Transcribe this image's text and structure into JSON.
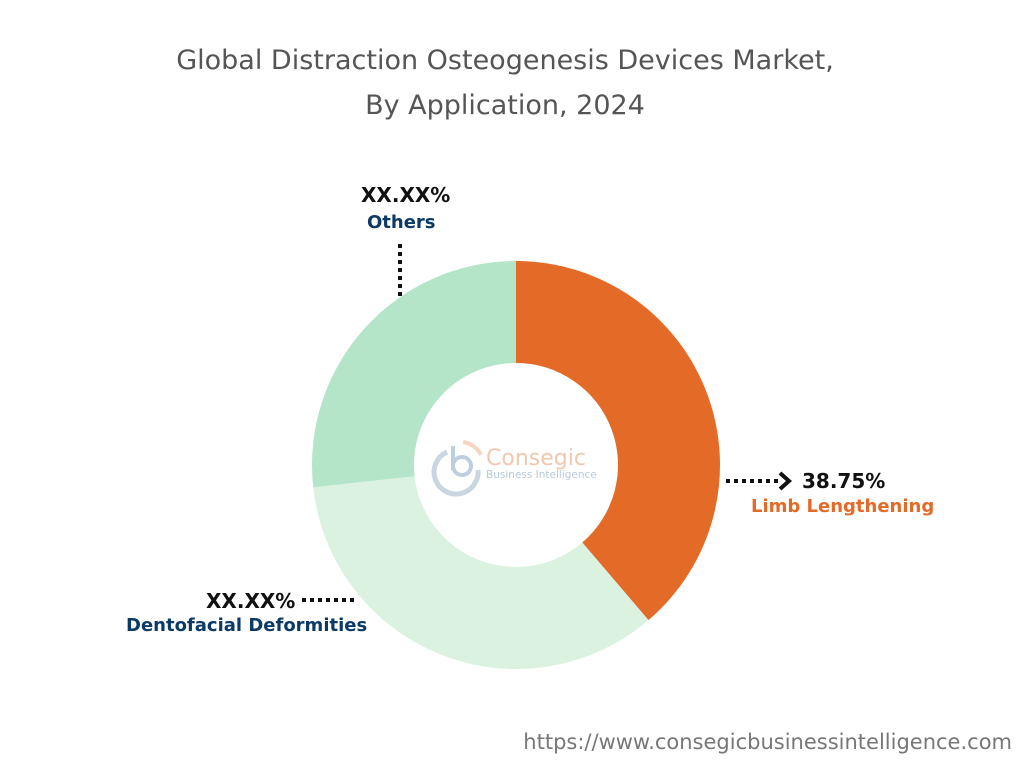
{
  "chart_data": {
    "type": "pie",
    "variant": "donut",
    "title": "Global Distraction Osteogenesis Devices Market,",
    "subtitle": "By Application, 2024",
    "categories": [
      "Limb Lengthening",
      "Dentofacial Deformities",
      "Others"
    ],
    "values": [
      38.75,
      34.5,
      26.75
    ],
    "value_labels": [
      "38.75%",
      "XX.XX%",
      "XX.XX%"
    ],
    "colors": [
      "#E46A27",
      "#DAF2DF",
      "#B5E5C8"
    ],
    "label_colors": [
      "#E46A27",
      "#0C3A66",
      "#0C3A66"
    ],
    "legend": "none"
  },
  "logo": {
    "name": "Consegic",
    "tagline": "Business Intelligence"
  },
  "footer": {
    "url": "https://www.consegicbusinessintelligence.com"
  }
}
